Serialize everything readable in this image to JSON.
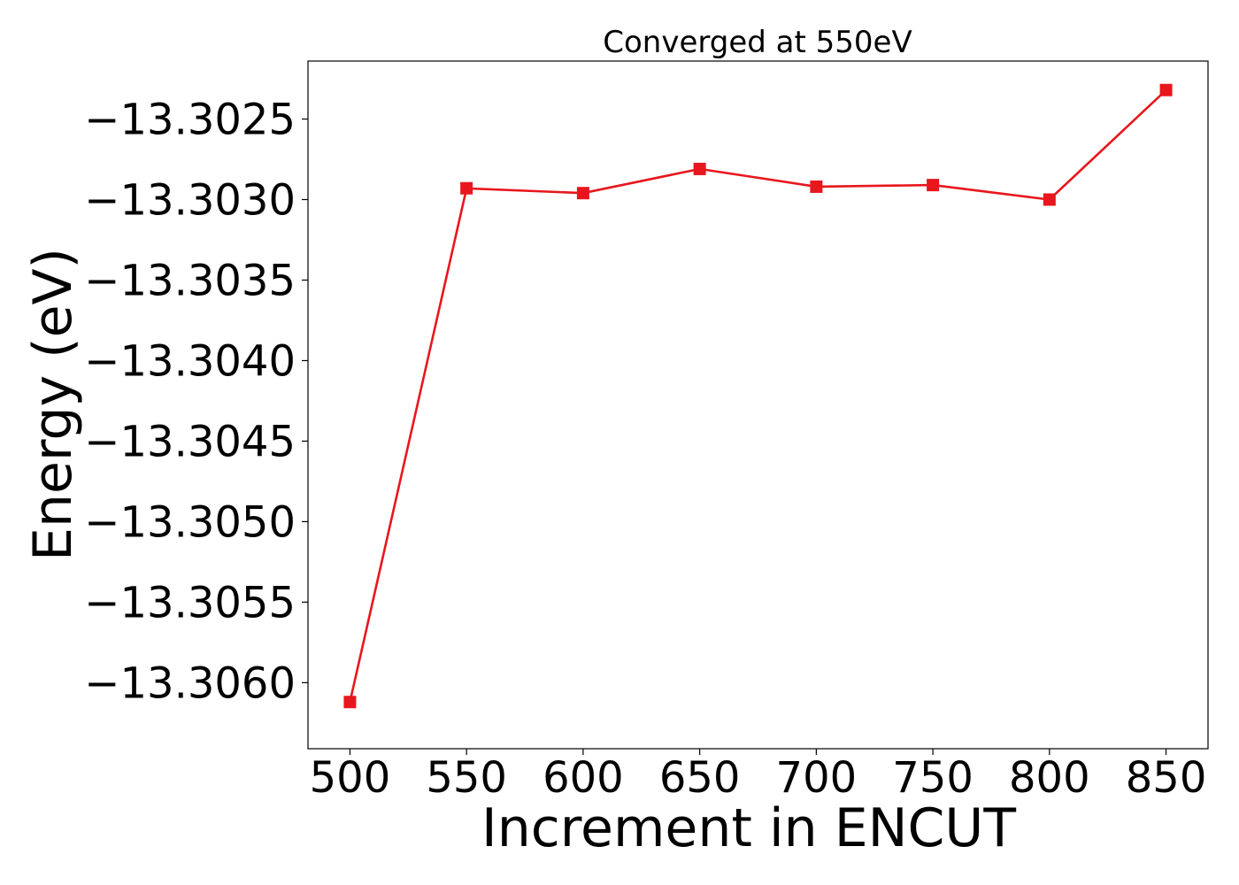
{
  "chart_data": {
    "type": "line",
    "title": "Converged at 550eV",
    "xlabel": "Increment in ENCUT",
    "ylabel": "Energy (eV)",
    "x": [
      500,
      550,
      600,
      650,
      700,
      750,
      800,
      850
    ],
    "series": [
      {
        "values": [
          -13.30612,
          -13.30293,
          -13.30296,
          -13.30281,
          -13.30292,
          -13.30291,
          -13.303,
          -13.30232
        ],
        "color": "#e8161d",
        "marker": "square"
      }
    ],
    "xticks": [
      500,
      550,
      600,
      650,
      700,
      750,
      800,
      850
    ],
    "xtick_labels": [
      "500",
      "550",
      "600",
      "650",
      "700",
      "750",
      "800",
      "850"
    ],
    "yticks": [
      -13.3025,
      -13.303,
      -13.3035,
      -13.304,
      -13.3045,
      -13.305,
      -13.3055,
      -13.306
    ],
    "ytick_labels": [
      "−13.3025",
      "−13.3030",
      "−13.3035",
      "−13.3040",
      "−13.3045",
      "−13.3050",
      "−13.3055",
      "−13.3060"
    ],
    "xlim": [
      482,
      868
    ],
    "ylim": [
      -13.30641,
      -13.30214
    ],
    "grid": false,
    "legend": "none"
  }
}
